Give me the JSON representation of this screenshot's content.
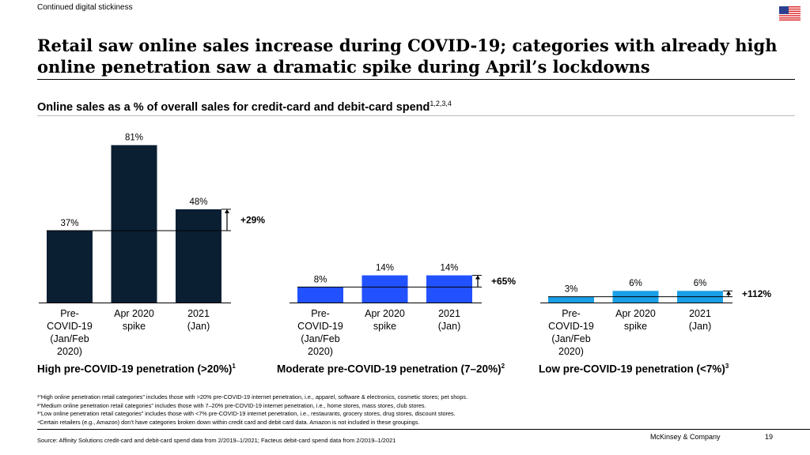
{
  "tracker": "Continued digital stickiness",
  "title": "Retail saw online sales increase during COVID-19; categories with already high online penetration saw a dramatic spike during April’s lockdowns",
  "subtitle": "Online sales as a % of overall sales for credit-card and debit-card spend",
  "subtitle_sup": "1,2,3,4",
  "flag_icon": "us-flag-icon",
  "chart_data": [
    {
      "type": "bar",
      "group_label": "High pre-COVID-19 penetration (>20%)",
      "group_sup": "1",
      "categories": [
        "Pre-COVID-19 (Jan/Feb 2020)",
        "Apr 2020 spike",
        "2021 (Jan)"
      ],
      "category_lines": [
        [
          "Pre-",
          "COVID-19",
          "(Jan/Feb",
          "2020)"
        ],
        [
          "Apr 2020",
          "spike"
        ],
        [
          "2021",
          "(Jan)"
        ]
      ],
      "values": [
        37,
        81,
        48
      ],
      "data_labels": [
        "37%",
        "81%",
        "48%"
      ],
      "change_label": "+29%",
      "color": "#0b1f33"
    },
    {
      "type": "bar",
      "group_label": "Moderate pre-COVID-19 penetration (7–20%)",
      "group_sup": "2",
      "categories": [
        "Pre-COVID-19 (Jan/Feb 2020)",
        "Apr 2020 spike",
        "2021 (Jan)"
      ],
      "category_lines": [
        [
          "Pre-",
          "COVID-19",
          "(Jan/Feb",
          "2020)"
        ],
        [
          "Apr 2020",
          "spike"
        ],
        [
          "2021",
          "(Jan)"
        ]
      ],
      "values": [
        8,
        14,
        14
      ],
      "data_labels": [
        "8%",
        "14%",
        "14%"
      ],
      "change_label": "+65%",
      "color": "#2251ff"
    },
    {
      "type": "bar",
      "group_label": "Low pre-COVID-19 penetration (<7%)",
      "group_sup": "3",
      "categories": [
        "Pre-COVID-19 (Jan/Feb 2020)",
        "Apr 2020 spike",
        "2021 (Jan)"
      ],
      "category_lines": [
        [
          "Pre-",
          "COVID-19",
          "(Jan/Feb",
          "2020)"
        ],
        [
          "Apr 2020",
          "spike"
        ],
        [
          "2021",
          "(Jan)"
        ]
      ],
      "values": [
        3,
        6,
        6
      ],
      "data_labels": [
        "3%",
        "6%",
        "6%"
      ],
      "change_label": "+112%",
      "color": "#1a9fe6"
    }
  ],
  "notes": [
    "¹“High online penetration retail categories” includes those with >20% pre-COVID-19 internet penetration, i.e., apparel, software & electronics, cosmetic stores; pet shops.",
    "²“Medium online penetration retail categories” includes those with 7–20% pre-COVID-19 internet penetration, i.e., home stores, mass stores, club stores.",
    "³“Low online penetration retail categories” includes those with <7% pre-COVID-19 internet penetration, i.e., restaurants, grocery stores, drug stores, discount stores.",
    "⁴Certain retailers (e.g., Amazon) don’t have categories broken down within credit card and debit card data. Amazon is not included in these groupings."
  ],
  "source": "Source: Affinity Solutions credit-card and debit-card spend data from 2/2019–1/2021; Facteus debit-card spend data from 2/2019–1/2021",
  "brand": "McKinsey & Company",
  "page_number": "19"
}
